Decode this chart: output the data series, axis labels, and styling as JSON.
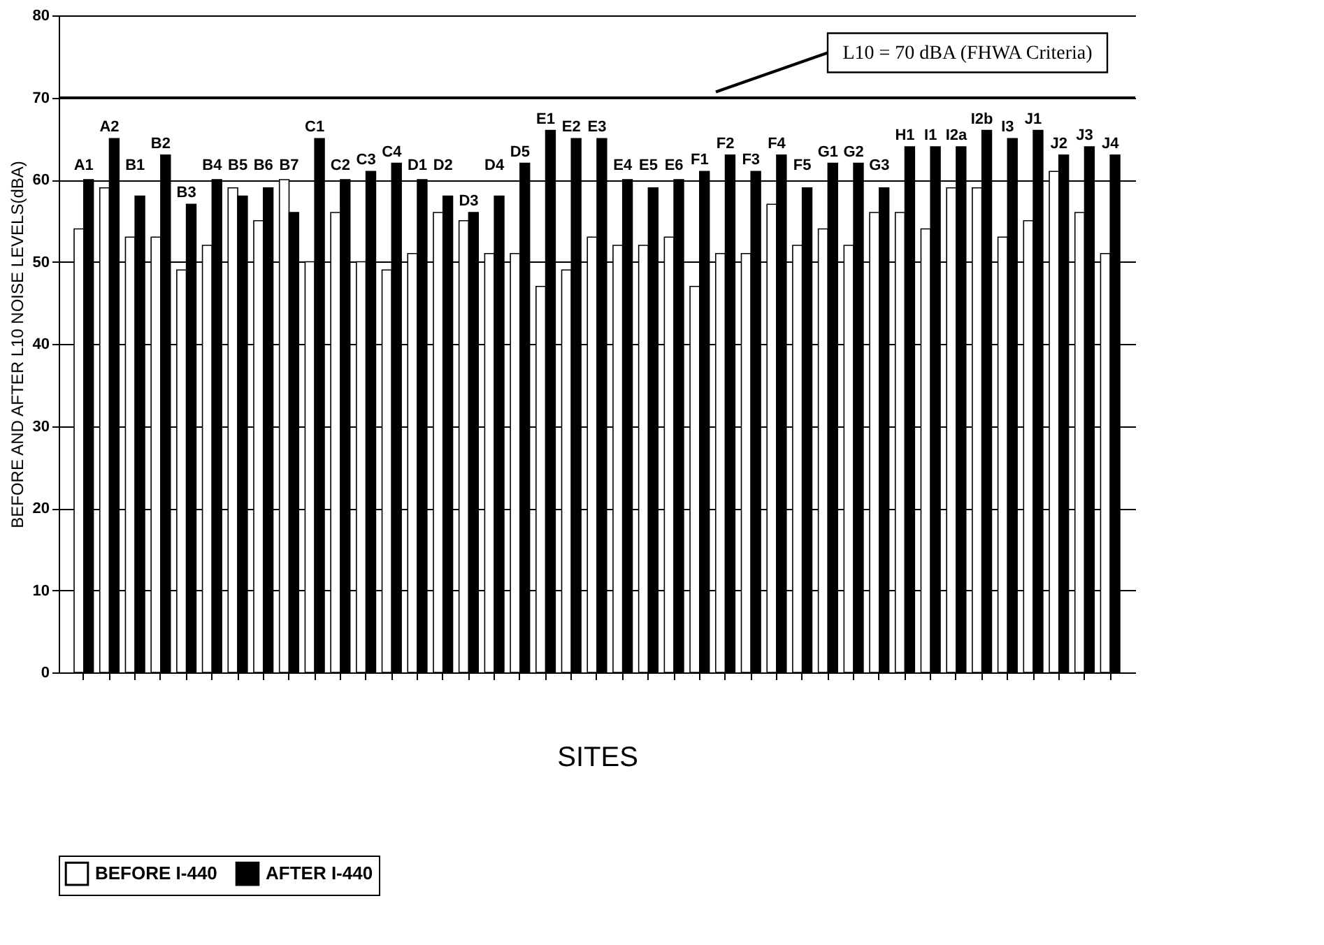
{
  "chart_data": {
    "type": "bar",
    "xlabel": "SITES",
    "ylabel": "BEFORE AND AFTER L10 NOISE LEVELS(dBA)",
    "categories": [
      "A1",
      "A2",
      "B1",
      "B2",
      "B3",
      "B4",
      "B5",
      "B6",
      "B7",
      "C1",
      "C2",
      "C3",
      "C4",
      "D1",
      "D2",
      "D3",
      "D4",
      "D5",
      "E1",
      "E2",
      "E3",
      "E4",
      "E5",
      "E6",
      "F1",
      "F2",
      "F3",
      "F4",
      "F5",
      "G1",
      "G2",
      "G3",
      "H1",
      "I1",
      "I2a",
      "I2b",
      "I3",
      "J1",
      "J2",
      "J3",
      "J4"
    ],
    "series": [
      {
        "name": "BEFORE I-440",
        "color": "#ffffff",
        "values": [
          54,
          59,
          53,
          53,
          49,
          52,
          59,
          55,
          60,
          50,
          56,
          50,
          49,
          51,
          56,
          55,
          51,
          51,
          47,
          49,
          53,
          52,
          52,
          53,
          47,
          51,
          51,
          57,
          52,
          54,
          52,
          56,
          56,
          54,
          59,
          59,
          53,
          55,
          61,
          56,
          51
        ]
      },
      {
        "name": "AFTER I-440",
        "color": "#000000",
        "values": [
          60,
          65,
          58,
          63,
          57,
          60,
          58,
          59,
          56,
          65,
          60,
          61,
          62,
          60,
          58,
          56,
          58,
          62,
          66,
          65,
          65,
          60,
          59,
          60,
          61,
          63,
          61,
          63,
          59,
          62,
          62,
          59,
          64,
          64,
          64,
          66,
          65,
          66,
          63,
          64,
          63
        ]
      }
    ],
    "ylim": [
      0,
      80
    ],
    "yticks": [
      0,
      10,
      20,
      30,
      40,
      50,
      60,
      70,
      80
    ],
    "grid": "y",
    "tick_labels": "y",
    "legend": "bottom",
    "ref_lines": [
      {
        "axis": "y",
        "value": 70,
        "label": "L10 = 70 dBA (FHWA Criteria)",
        "color": "#000000"
      }
    ]
  }
}
